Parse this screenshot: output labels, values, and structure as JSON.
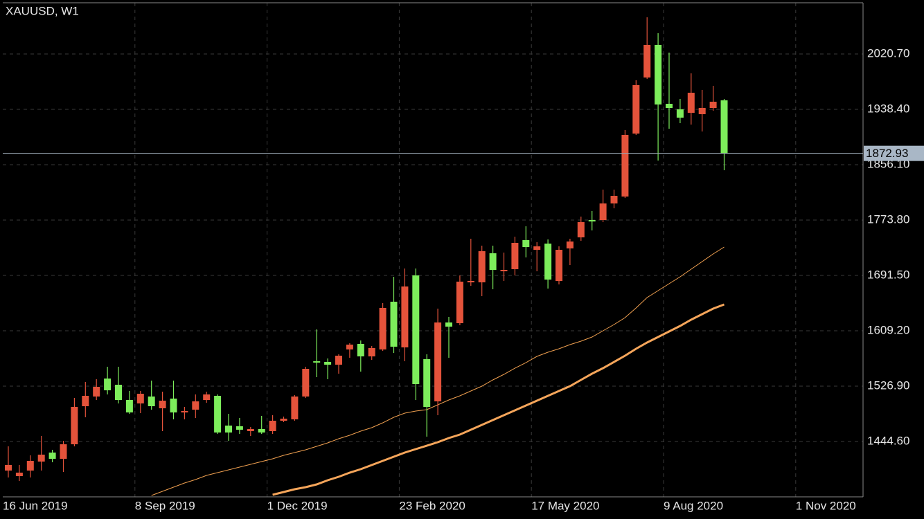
{
  "chart_data": {
    "type": "candlestick",
    "title": "XAUUSD, W1",
    "categories": [
      "16 Jun 2019",
      null,
      null,
      null,
      null,
      null,
      null,
      null,
      null,
      null,
      null,
      null,
      "8 Sep 2019",
      null,
      null,
      null,
      null,
      null,
      null,
      null,
      null,
      null,
      null,
      null,
      "1 Dec 2019",
      null,
      null,
      null,
      null,
      null,
      null,
      null,
      null,
      null,
      null,
      null,
      "23 Feb 2020",
      null,
      null,
      null,
      null,
      null,
      null,
      null,
      null,
      null,
      null,
      null,
      "17 May 2020",
      null,
      null,
      null,
      null,
      null,
      null,
      null,
      null,
      null,
      null,
      null,
      "9 Aug 2020",
      null,
      null,
      null,
      null,
      null,
      null,
      null,
      null,
      null,
      null,
      null,
      "1 Nov 2020"
    ],
    "open": [
      1401.39,
      1393.16,
      1401.39,
      1414.76,
      1428.14,
      1418.88,
      1440.48,
      1497.06,
      1511.46,
      1538.21,
      1528.95,
      1506.32,
      1501.18,
      1511.46,
      1493.98,
      1508.38,
      1487.8,
      1491.92,
      1506.32,
      1512.49,
      1468.26,
      1467.23,
      1460.03,
      1463.11,
      1460.03,
      1475.46,
      1477.52,
      1511.46,
      1563.93,
      1562.9,
      1558.79,
      1581.42,
      1589.65,
      1571.13,
      1581.42,
      1652.4,
      1584.51,
      1691.5,
      1567.02,
      1504.26,
      1621.54,
      1620.51,
      1681.21,
      1681.21,
      1724.42,
      1697.67,
      1700.76,
      1743.96,
      1729.56,
      1738.82,
      1683.27,
      1731.62,
      1748.08,
      1773.8,
      1773.8,
      1798.49,
      1808.77,
      1902.39,
      1985.72,
      2034.07,
      1946.63,
      1938.4,
      1933.25,
      1931.2,
      1940.45,
      1951.77,
      null,
      null,
      null,
      null,
      null,
      null,
      null
    ],
    "high": [
      1437.4,
      1409.62,
      1424.02,
      1452.83,
      1432.25,
      1445.63,
      1509.41,
      1533.07,
      1537.18,
      1555.7,
      1555.7,
      1519.7,
      1519.7,
      1535.13,
      1518.67,
      1535.13,
      1496.03,
      1514.55,
      1518.67,
      1514.55,
      1485.75,
      1479.57,
      1466.2,
      1482.66,
      1483.69,
      1481.63,
      1513.52,
      1555.7,
      1611.25,
      1568.05,
      1574.22,
      1590.68,
      1594.8,
      1586.56,
      1650.35,
      1689.44,
      1701.78,
      1701.78,
      1574.22,
      1642.12,
      1629.77,
      1691.5,
      1746.02,
      1735.73,
      1735.73,
      1725.45,
      1749.11,
      1764.54,
      1740.88,
      1744.99,
      1734.7,
      1746.02,
      1778.94,
      1787.17,
      1819.06,
      1819.06,
      1907.53,
      1981.6,
      2075.22,
      2051.56,
      2022.75,
      1953.83,
      1991.89,
      1967.2,
      1973.37,
      1953.83,
      null,
      null,
      null,
      null,
      null,
      null,
      null
    ],
    "low": [
      1391.1,
      1385.96,
      1391.1,
      1401.39,
      1413.73,
      1399.33,
      1437.4,
      1480.6,
      1506.32,
      1514.55,
      1501.18,
      1485.75,
      1486.78,
      1491.92,
      1460.03,
      1477.52,
      1477.52,
      1479.57,
      1502.21,
      1455.91,
      1445.63,
      1455.91,
      1452.83,
      1455.91,
      1455.91,
      1473.4,
      1475.46,
      1509.41,
      1540.27,
      1537.18,
      1545.41,
      1569.08,
      1548.5,
      1565.99,
      1579.36,
      1576.28,
      1563.93,
      1506.32,
      1451.8,
      1483.69,
      1569.08,
      1617.43,
      1676.07,
      1660.63,
      1670.92,
      1683.27,
      1691.5,
      1718.24,
      1697.67,
      1671.95,
      1678.12,
      1706.93,
      1742.93,
      1758.37,
      1770.71,
      1791.29,
      1806.72,
      1900.33,
      1983.66,
      1862.27,
      1909.59,
      1917.82,
      1915.76,
      1905.48,
      1936.34,
      1847.87,
      null,
      null,
      null,
      null,
      null,
      null,
      null
    ],
    "close": [
      1409.62,
      1398.3,
      1415.79,
      1425.05,
      1418.88,
      1440.48,
      1496.03,
      1512.49,
      1525.87,
      1520.72,
      1506.32,
      1487.8,
      1515.58,
      1497.06,
      1505.29,
      1487.8,
      1489.86,
      1504.26,
      1514.55,
      1457.97,
      1457.97,
      1462.09,
      1463.11,
      1457.97,
      1475.46,
      1478.55,
      1511.46,
      1552.62,
      1561.87,
      1558.79,
      1572.16,
      1588.62,
      1571.13,
      1583.48,
      1643.15,
      1585.54,
      1675.04,
      1529.98,
      1496.03,
      1621.54,
      1615.37,
      1682.24,
      1683.27,
      1727.5,
      1699.73,
      1699.73,
      1739.85,
      1733.68,
      1734.7,
      1685.32,
      1729.56,
      1741.91,
      1770.71,
      1771.74,
      1798.49,
      1809.8,
      1900.33,
      1974.4,
      2034.07,
      1945.6,
      1940.45,
      1926.05,
      1963.09,
      1940.45,
      1949.71,
      1872.93,
      null,
      null,
      null,
      null,
      null,
      null,
      null
    ],
    "up_color": "#e4533b",
    "down_color": "#7ded5b",
    "series": [
      {
        "color": "#f0a050",
        "width": 1,
        "values": [
          null,
          null,
          null,
          null,
          null,
          null,
          null,
          null,
          null,
          null,
          null,
          null,
          null,
          1364.35,
          1370.53,
          1376.7,
          1382.87,
          1388.02,
          1394.19,
          1398.3,
          1402.42,
          1406.53,
          1410.65,
          1414.76,
          1418.88,
          1424.02,
          1428.14,
          1432.25,
          1437.4,
          1442.54,
          1448.71,
          1453.86,
          1460.03,
          1465.17,
          1472.37,
          1480.6,
          1486.78,
          1489.86,
          1491.92,
          1499.12,
          1506.32,
          1512.49,
          1519.7,
          1526.9,
          1536.16,
          1544.39,
          1553.64,
          1561.87,
          1571.13,
          1577.31,
          1582.45,
          1588.62,
          1593.77,
          1599.94,
          1609.2,
          1618.46,
          1628.74,
          1643.15,
          1658.58,
          1668.86,
          1679.15,
          1689.44,
          1700.76,
          1712.07,
          1723.39,
          1733.68,
          null,
          null,
          null,
          null,
          null,
          null,
          null
        ]
      },
      {
        "color": "#f5a55a",
        "width": 3,
        "values": [
          null,
          null,
          null,
          null,
          null,
          null,
          null,
          null,
          null,
          null,
          null,
          null,
          null,
          null,
          null,
          null,
          null,
          null,
          null,
          null,
          null,
          null,
          null,
          null,
          1365.38,
          1369.5,
          1373.61,
          1376.7,
          1380.81,
          1386.99,
          1392.13,
          1398.3,
          1403.45,
          1409.62,
          1415.79,
          1421.96,
          1428.14,
          1433.28,
          1438.42,
          1443.57,
          1449.74,
          1454.88,
          1462.09,
          1469.29,
          1476.49,
          1483.69,
          1490.89,
          1498.09,
          1505.29,
          1512.49,
          1519.7,
          1526.9,
          1536.16,
          1545.41,
          1553.64,
          1562.9,
          1572.16,
          1582.45,
          1591.71,
          1599.94,
          1608.17,
          1616.4,
          1625.66,
          1633.89,
          1642.12,
          1648.29,
          null,
          null,
          null,
          null,
          null,
          null,
          null
        ]
      }
    ],
    "current_price": 1872.93,
    "ylim": [
      1362.3,
      2096.83
    ],
    "yticks": [
      {
        "value": 1444.6,
        "label": "1444.60"
      },
      {
        "value": 1526.9,
        "label": "1526.90"
      },
      {
        "value": 1609.2,
        "label": "1609.20"
      },
      {
        "value": 1691.5,
        "label": "1691.50"
      },
      {
        "value": 1773.8,
        "label": "1773.80"
      },
      {
        "value": 1856.1,
        "label": "1856.10"
      },
      {
        "value": 1938.4,
        "label": "1938.40"
      },
      {
        "value": 2020.7,
        "label": "2020.70"
      }
    ],
    "grid": true
  }
}
